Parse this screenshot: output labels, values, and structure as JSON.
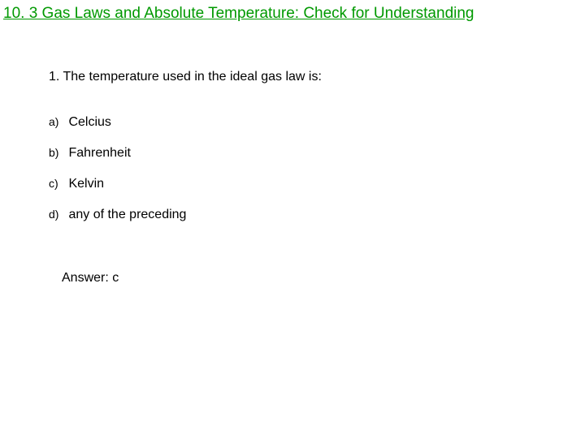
{
  "title": "10. 3 Gas Laws and Absolute Temperature: Check for Understanding",
  "title_color": "#009900",
  "title_fontsize": 19,
  "question": "1. The temperature used in the ideal gas law is:",
  "options": [
    {
      "label": "a)",
      "text": "Celcius"
    },
    {
      "label": "b)",
      "text": "Fahrenheit"
    },
    {
      "label": "c)",
      "text": "Kelvin"
    },
    {
      "label": "d)",
      "text": "any of the preceding"
    }
  ],
  "answer_label": "Answer:  c",
  "body_fontsize": 16,
  "body_color": "#000000",
  "background_color": "#ffffff"
}
